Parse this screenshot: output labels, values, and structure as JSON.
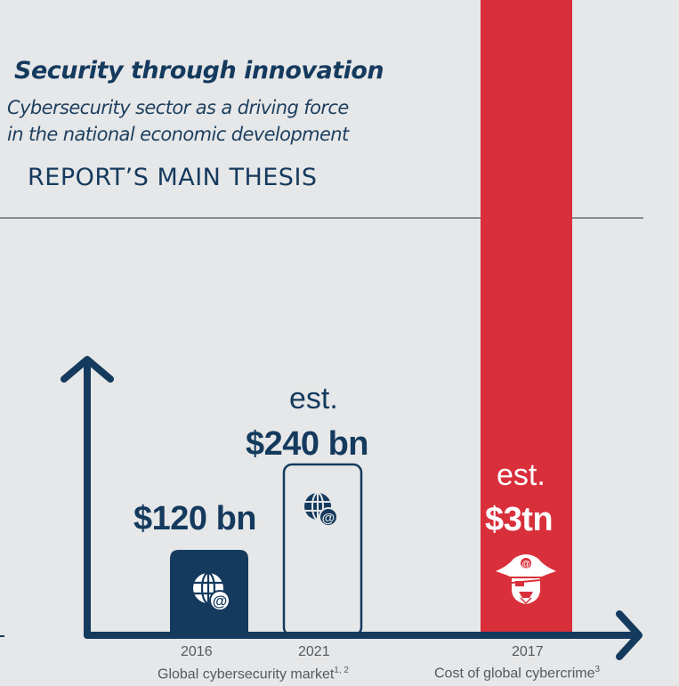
{
  "header": {
    "title": "Security through innovation",
    "subtitle_line1": "Cybersecurity sector as a driving force",
    "subtitle_line2": "in the national economic development",
    "thesis": "REPORT’S MAIN THESIS"
  },
  "colors": {
    "navy": "#143a5e",
    "red": "#d92f3a",
    "background": "#e6e7e8",
    "white": "#ffffff"
  },
  "icons": {
    "bar_2016": "globe-at-icon",
    "bar_2021": "globe-at-icon",
    "bar_2017": "pirate-icon"
  },
  "chart_data": {
    "type": "bar",
    "categories": [
      "2016",
      "2021",
      "2017"
    ],
    "values": [
      120,
      240,
      3000
    ],
    "value_labels": [
      "$120 bn",
      "$240 bn",
      "$3tn"
    ],
    "estimate_labels": [
      "",
      "est.",
      "est."
    ],
    "units": "USD billions",
    "groups": [
      {
        "name": "Global cybersecurity market",
        "superscript": "1, 2",
        "categories": [
          "2016",
          "2021"
        ]
      },
      {
        "name": "Cost of global cybercrime",
        "superscript": "3",
        "categories": [
          "2017"
        ]
      }
    ],
    "bar_styles": [
      "filled",
      "outline",
      "full-height"
    ],
    "axis_scale": "not to scale",
    "xlabel": "",
    "ylabel": "",
    "grid": false
  }
}
